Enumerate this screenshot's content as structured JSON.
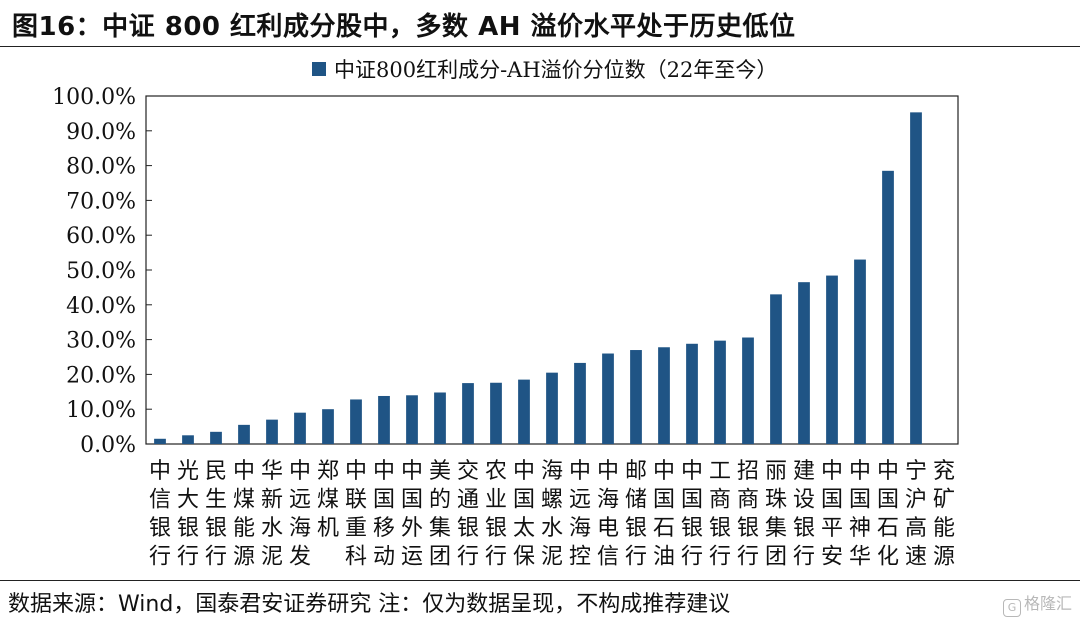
{
  "header": {
    "title": "图16：中证 800 红利成分股中，多数 AH 溢价水平处于历史低位"
  },
  "footer": {
    "source": "数据来源：Wind，国泰君安证券研究 注：仅为数据呈现，不构成推荐建议"
  },
  "watermark": {
    "text": "格隆汇"
  },
  "chart_data": {
    "type": "bar",
    "title": "",
    "xlabel": "",
    "ylabel": "",
    "ylim": [
      0,
      100
    ],
    "yticks": [
      "0.0%",
      "10.0%",
      "20.0%",
      "30.0%",
      "40.0%",
      "50.0%",
      "60.0%",
      "70.0%",
      "80.0%",
      "90.0%",
      "100.0%"
    ],
    "legend_position": "top-center",
    "grid": false,
    "bar_color": "#1f5485",
    "categories": [
      "中信银行",
      "光大银行",
      "民生银行",
      "中煤能源",
      "华新水泥",
      "中远海发",
      "郑煤机",
      "中联重科",
      "中国移动",
      "中国外运",
      "美的集团",
      "交通银行",
      "农业银行",
      "中国太保",
      "海螺水泥",
      "中远海控",
      "中海电信",
      "邮储银行",
      "中国石油",
      "中国银行",
      "工商银行",
      "招商银行",
      "丽珠集团",
      "建设银行",
      "中国平安",
      "中国神华",
      "中国石化",
      "宁沪高速",
      "兖矿能源"
    ],
    "series": [
      {
        "name": "中证800红利成分-AH溢价分位数（22年至今）",
        "values": [
          1.5,
          2.5,
          3.5,
          5.5,
          7.0,
          9.0,
          10.0,
          12.8,
          13.8,
          14.0,
          14.8,
          17.5,
          17.6,
          18.5,
          20.5,
          23.3,
          26.0,
          27.0,
          27.8,
          28.8,
          29.7,
          30.6,
          43.0,
          46.5,
          48.4,
          53.0,
          78.5,
          95.3,
          0
        ]
      }
    ]
  }
}
